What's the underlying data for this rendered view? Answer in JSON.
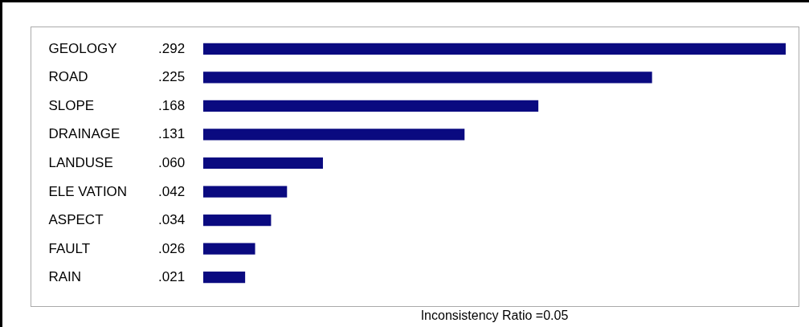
{
  "chart_data": {
    "type": "bar",
    "orientation": "horizontal",
    "categories": [
      "GEOLOGY",
      "ROAD",
      "SLOPE",
      "DRAINAGE",
      "LANDUSE",
      "ELE VATION",
      "ASPECT",
      "FAULT",
      "RAIN"
    ],
    "values": [
      0.292,
      0.225,
      0.168,
      0.131,
      0.06,
      0.042,
      0.034,
      0.026,
      0.021
    ],
    "value_labels": [
      ".292",
      ".225",
      ".168",
      ".131",
      ".060",
      ".042",
      ".034",
      ".026",
      ".021"
    ],
    "color": "#0a0a80",
    "annotations": [
      "Inconsistency Ratio =0.05"
    ]
  }
}
